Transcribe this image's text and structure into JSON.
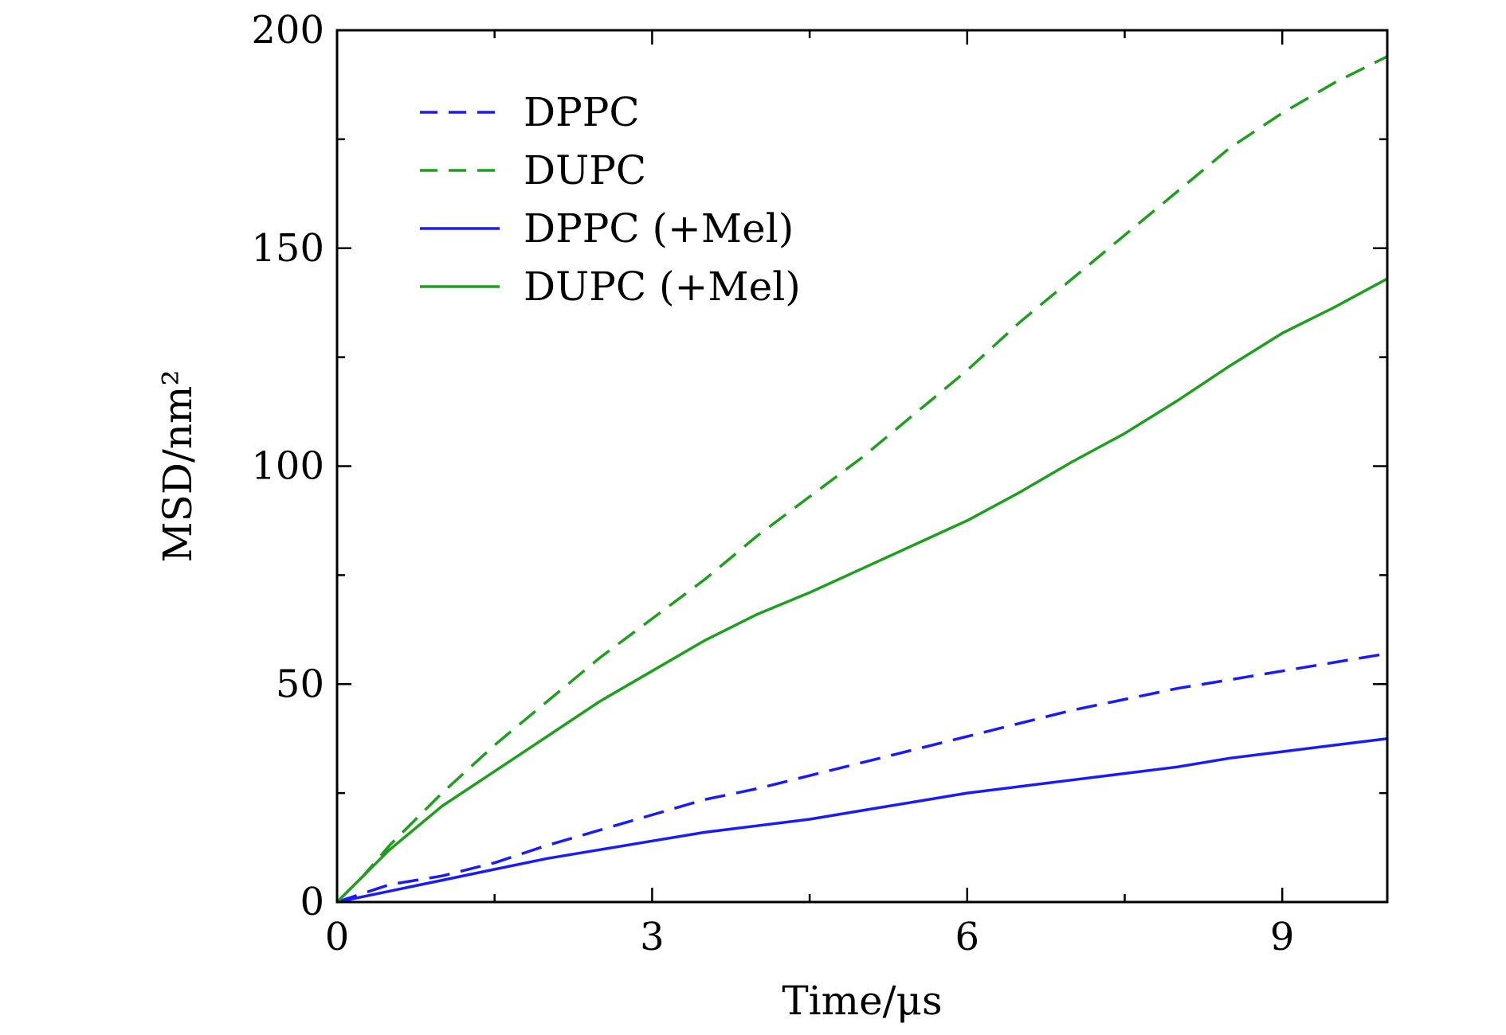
{
  "chart_data": {
    "type": "line",
    "xlabel": "Time/μs",
    "ylabel": "MSD/nm²",
    "xlim": [
      0,
      10
    ],
    "ylim": [
      0,
      200
    ],
    "xticks": [
      0,
      3,
      6,
      9
    ],
    "yticks": [
      0,
      50,
      100,
      150,
      200
    ],
    "x_minor_ticks": [
      1.5,
      4.5,
      7.5
    ],
    "y_minor_ticks": [
      25,
      75,
      125,
      175
    ],
    "grid": false,
    "legend_position": "top-left",
    "series": [
      {
        "name": "DPPC",
        "color": "#1a1aff",
        "dash": "dashed",
        "x": [
          0,
          0.25,
          0.5,
          1,
          1.5,
          2,
          2.5,
          3,
          3.5,
          4,
          4.5,
          5,
          5.5,
          6,
          6.5,
          7,
          7.5,
          8,
          8.5,
          9,
          9.5,
          10
        ],
        "y": [
          0,
          2,
          4,
          6,
          9,
          13,
          16.5,
          20,
          23.5,
          26,
          29,
          32,
          35,
          38,
          41,
          44,
          46.5,
          49,
          51,
          53,
          55,
          57
        ]
      },
      {
        "name": "DUPC",
        "color": "#1f9e1f",
        "dash": "dashed",
        "x": [
          0,
          0.25,
          0.5,
          1,
          1.5,
          2,
          2.5,
          3,
          3.5,
          4,
          4.5,
          5,
          5.5,
          6,
          6.5,
          7,
          7.5,
          8,
          8.5,
          9,
          9.5,
          10
        ],
        "y": [
          0,
          6,
          13,
          25,
          36,
          46,
          56,
          65,
          74,
          84,
          93,
          102,
          112,
          122,
          133,
          143,
          153,
          163,
          173,
          181,
          188,
          194
        ]
      },
      {
        "name": "DPPC (+Mel)",
        "color": "#1a1aff",
        "dash": "solid",
        "x": [
          0,
          0.5,
          1,
          1.5,
          2,
          2.5,
          3,
          3.5,
          4,
          4.5,
          5,
          5.5,
          6,
          6.5,
          7,
          7.5,
          8,
          8.5,
          9,
          9.5,
          10
        ],
        "y": [
          0,
          2.5,
          5,
          7.5,
          10,
          12,
          14,
          16,
          17.5,
          19,
          21,
          23,
          25,
          26.5,
          28,
          29.5,
          31,
          33,
          34.5,
          36,
          37.5
        ]
      },
      {
        "name": "DUPC (+Mel)",
        "color": "#1f9e1f",
        "dash": "solid",
        "x": [
          0,
          0.5,
          1,
          1.5,
          2,
          2.5,
          3,
          3.5,
          4,
          4.5,
          5,
          5.5,
          6,
          6.5,
          7,
          7.5,
          8,
          8.5,
          9,
          9.5,
          10
        ],
        "y": [
          0,
          12,
          22,
          30,
          38,
          46,
          53,
          60,
          66,
          71,
          76.5,
          82,
          87.5,
          94,
          101,
          107.5,
          115,
          123,
          130.5,
          136.5,
          143
        ]
      }
    ]
  }
}
